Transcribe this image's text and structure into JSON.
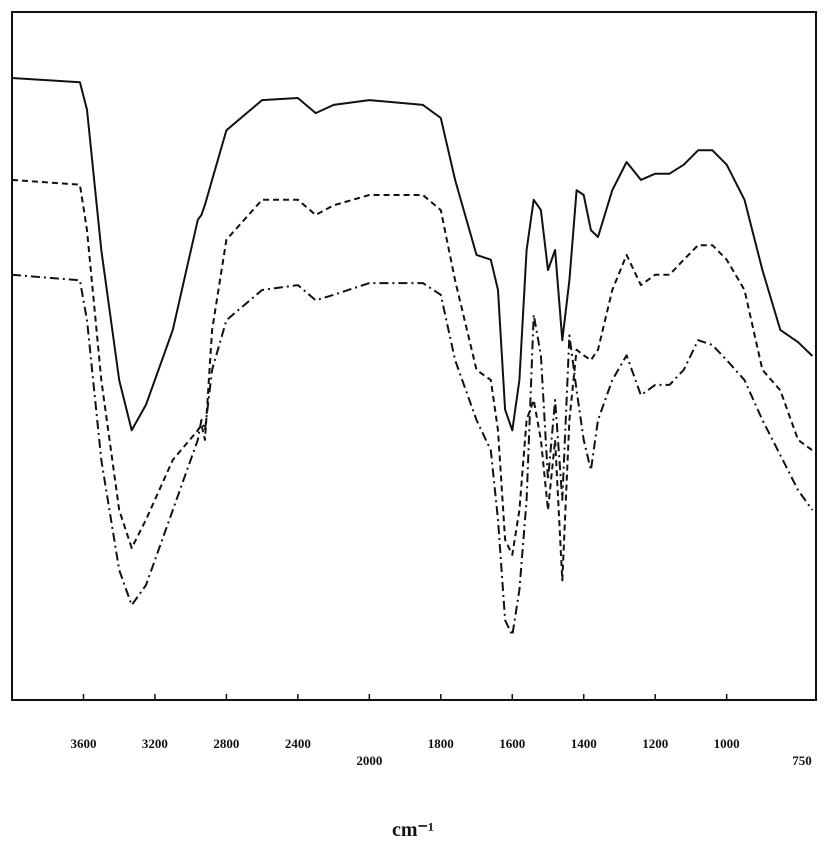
{
  "chart_data": {
    "type": "line",
    "x_label": "cm⁻¹",
    "x": [
      4000,
      3620,
      3580,
      3500,
      3400,
      3330,
      3250,
      3100,
      2960,
      2940,
      2920,
      2880,
      2800,
      2600,
      2400,
      2300,
      2200,
      2000,
      1850,
      1800,
      1760,
      1700,
      1660,
      1640,
      1620,
      1600,
      1580,
      1560,
      1540,
      1520,
      1500,
      1480,
      1460,
      1440,
      1420,
      1400,
      1380,
      1360,
      1320,
      1280,
      1240,
      1200,
      1160,
      1120,
      1080,
      1040,
      1000,
      950,
      900,
      850,
      800,
      760
    ],
    "series": [
      {
        "color": "#111111",
        "style": "solid",
        "values": [
          90.4,
          89.8,
          85.8,
          65.4,
          46.5,
          39.2,
          42.9,
          53.8,
          69.8,
          70.5,
          72,
          75.6,
          82.8,
          87.2,
          87.5,
          85.3,
          86.5,
          87.2,
          86.5,
          84.6,
          75.6,
          64.7,
          64,
          59.6,
          42.2,
          39.2,
          46.5,
          65.4,
          72.7,
          71.2,
          62.5,
          65.4,
          52.3,
          61,
          74.1,
          73.4,
          68.3,
          67.3,
          74.1,
          78.2,
          75.6,
          76.5,
          76.5,
          77.8,
          79.9,
          79.9,
          77.8,
          72.7,
          62.5,
          53.8,
          52,
          50
        ]
      },
      {
        "color": "#111111",
        "style": "dashed",
        "values": [
          75.6,
          74.9,
          68.3,
          46.5,
          27.6,
          22.1,
          26.2,
          34.9,
          39.2,
          40,
          37.8,
          53.8,
          66.9,
          72.7,
          72.7,
          70.5,
          71.9,
          73.4,
          73.4,
          71.2,
          61,
          48,
          46.5,
          39.2,
          23.3,
          21.1,
          27.6,
          40.7,
          43.6,
          37.8,
          27.6,
          37.8,
          17.4,
          40.7,
          50.9,
          50.1,
          49.4,
          50.9,
          59.6,
          64.7,
          60.3,
          61.8,
          61.8,
          64,
          66.1,
          66.1,
          64,
          59.6,
          48,
          45,
          37.8,
          36.3
        ]
      },
      {
        "color": "#111111",
        "style": "dashdot",
        "values": [
          61.8,
          61,
          55.2,
          34.9,
          18.9,
          13.8,
          16.7,
          27.6,
          37.8,
          40.7,
          39.2,
          48,
          55.2,
          59.6,
          60.3,
          58.1,
          58.9,
          60.6,
          60.6,
          58.9,
          49.4,
          40.7,
          36.3,
          26.2,
          11.6,
          9.4,
          16,
          29.1,
          56,
          50.1,
          32,
          43.6,
          29.1,
          53,
          45,
          37.8,
          33.4,
          40.7,
          46.5,
          50.1,
          44.3,
          45.8,
          45.8,
          48,
          52.3,
          51.6,
          49.4,
          46.5,
          40.7,
          35.6,
          30.5,
          27.6
        ]
      }
    ],
    "xlim": [
      4000,
      750
    ],
    "ylim": [
      0,
      100
    ],
    "xticks": [
      3600,
      3200,
      2800,
      2400,
      2000,
      1800,
      1600,
      1400,
      1200,
      1000,
      750
    ],
    "x_scale_change": 2000
  }
}
